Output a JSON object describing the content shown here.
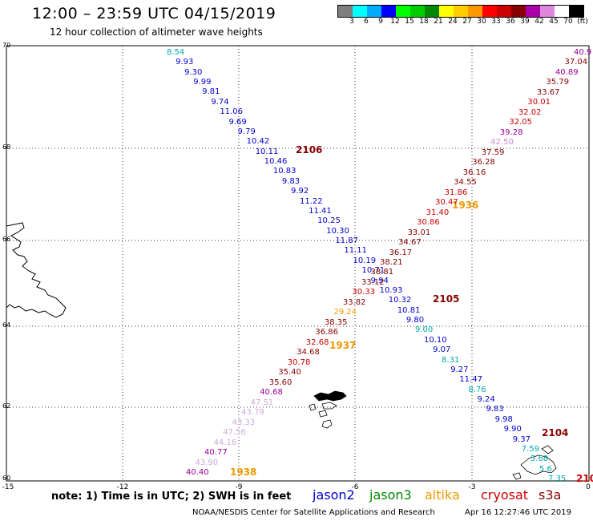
{
  "title": "12:00 – 23:59 UTC 04/15/2019",
  "subtitle": "12 hour collection of altimeter wave heights",
  "colorbar": {
    "colors": [
      "#7f7f7f",
      "#00ffff",
      "#00aaff",
      "#0000ff",
      "#00ff00",
      "#00cc00",
      "#008800",
      "#ffff00",
      "#ffcc00",
      "#ff9900",
      "#ff0000",
      "#cc0000",
      "#880000",
      "#aa00aa",
      "#dd88dd",
      "#ffffff",
      "#000000"
    ],
    "labels": [
      "3",
      "6",
      "9",
      "12",
      "15",
      "18",
      "21",
      "24",
      "27",
      "30",
      "33",
      "36",
      "39",
      "42",
      "45",
      "70",
      "(ft)"
    ]
  },
  "lat_labels": [
    "70",
    "68",
    "66",
    "64",
    "62",
    "60"
  ],
  "lon_labels": [
    "-15",
    "-12",
    "-9",
    "-6",
    "-3",
    "0"
  ],
  "pass_times": [
    {
      "text": "2106",
      "color": "#880000"
    },
    {
      "text": "1936",
      "color": "#ee9900"
    },
    {
      "text": "2105",
      "color": "#880000"
    },
    {
      "text": "1937",
      "color": "#ee9900"
    },
    {
      "text": "2104",
      "color": "#880000"
    },
    {
      "text": "1938",
      "color": "#ee9900"
    },
    {
      "text": "210",
      "color": "#cc0000"
    }
  ],
  "track_a_values": [
    {
      "v": "8.54",
      "c": "#00aaaa"
    },
    {
      "v": "9.93",
      "c": "#0000cc"
    },
    {
      "v": "9.30",
      "c": "#0000cc"
    },
    {
      "v": "9.99",
      "c": "#0000cc"
    },
    {
      "v": "9.81",
      "c": "#0000cc"
    },
    {
      "v": "9.74",
      "c": "#0000cc"
    },
    {
      "v": "11.06",
      "c": "#0000cc"
    },
    {
      "v": "9.69",
      "c": "#0000cc"
    },
    {
      "v": "9.79",
      "c": "#0000cc"
    },
    {
      "v": "10.42",
      "c": "#0000cc"
    },
    {
      "v": "10.11",
      "c": "#0000cc"
    },
    {
      "v": "10.46",
      "c": "#0000cc"
    },
    {
      "v": "10.83",
      "c": "#0000cc"
    },
    {
      "v": "9.83",
      "c": "#0000cc"
    },
    {
      "v": "9.92",
      "c": "#0000cc"
    },
    {
      "v": "11.22",
      "c": "#0000cc"
    },
    {
      "v": "11.41",
      "c": "#0000cc"
    },
    {
      "v": "10.25",
      "c": "#0000cc"
    },
    {
      "v": "10.30",
      "c": "#0000cc"
    },
    {
      "v": "11.87",
      "c": "#0000cc"
    },
    {
      "v": "11.11",
      "c": "#0000cc"
    },
    {
      "v": "10.19",
      "c": "#0000cc"
    },
    {
      "v": "10.71",
      "c": "#0000cc"
    },
    {
      "v": "9.94",
      "c": "#0000cc"
    },
    {
      "v": "10.93",
      "c": "#0000cc"
    },
    {
      "v": "10.32",
      "c": "#0000cc"
    },
    {
      "v": "10.81",
      "c": "#0000cc"
    },
    {
      "v": "9.80",
      "c": "#0000cc"
    },
    {
      "v": "9.00",
      "c": "#00aaaa"
    },
    {
      "v": "10.10",
      "c": "#0000cc"
    },
    {
      "v": "9.07",
      "c": "#0000cc"
    },
    {
      "v": "8.31",
      "c": "#00aaaa"
    },
    {
      "v": "9.27",
      "c": "#0000cc"
    },
    {
      "v": "11.47",
      "c": "#0000cc"
    },
    {
      "v": "8.76",
      "c": "#00aaaa"
    },
    {
      "v": "9.24",
      "c": "#0000cc"
    },
    {
      "v": "9.83",
      "c": "#0000cc"
    },
    {
      "v": "9.98",
      "c": "#0000cc"
    },
    {
      "v": "9.90",
      "c": "#0000cc"
    },
    {
      "v": "9.37",
      "c": "#0000cc"
    },
    {
      "v": "7.59",
      "c": "#00aaaa"
    },
    {
      "v": "5.68",
      "c": "#00aaaa"
    },
    {
      "v": "5.6",
      "c": "#00aaaa"
    },
    {
      "v": "7.35",
      "c": "#00aaaa"
    }
  ],
  "track_b_values": [
    {
      "v": "40.9",
      "c": "#990099"
    },
    {
      "v": "37.04",
      "c": "#880000"
    },
    {
      "v": "40.89",
      "c": "#990099"
    },
    {
      "v": "35.79",
      "c": "#880000"
    },
    {
      "v": "33.67",
      "c": "#880000"
    },
    {
      "v": "30.01",
      "c": "#cc0000"
    },
    {
      "v": "32.02",
      "c": "#cc0000"
    },
    {
      "v": "32.05",
      "c": "#cc0000"
    },
    {
      "v": "39.28",
      "c": "#990099"
    },
    {
      "v": "42.50",
      "c": "#cc88cc"
    },
    {
      "v": "37.59",
      "c": "#880000"
    },
    {
      "v": "36.28",
      "c": "#880000"
    },
    {
      "v": "36.16",
      "c": "#880000"
    },
    {
      "v": "34.55",
      "c": "#880000"
    },
    {
      "v": "31.86",
      "c": "#cc0000"
    },
    {
      "v": "30.47",
      "c": "#cc0000"
    },
    {
      "v": "31.40",
      "c": "#cc0000"
    },
    {
      "v": "30.86",
      "c": "#cc0000"
    },
    {
      "v": "33.01",
      "c": "#880000"
    },
    {
      "v": "34.67",
      "c": "#880000"
    },
    {
      "v": "36.17",
      "c": "#880000"
    },
    {
      "v": "38.21",
      "c": "#880000"
    },
    {
      "v": "38.81",
      "c": "#880000"
    },
    {
      "v": "33.12",
      "c": "#880000"
    },
    {
      "v": "30.33",
      "c": "#cc0000"
    },
    {
      "v": "33.82",
      "c": "#880000"
    },
    {
      "v": "29.24",
      "c": "#ee9900"
    },
    {
      "v": "38.35",
      "c": "#880000"
    },
    {
      "v": "36.86",
      "c": "#880000"
    },
    {
      "v": "32.68",
      "c": "#cc0000"
    },
    {
      "v": "34.68",
      "c": "#880000"
    },
    {
      "v": "30.78",
      "c": "#cc0000"
    },
    {
      "v": "35.40",
      "c": "#880000"
    },
    {
      "v": "35.60",
      "c": "#880000"
    },
    {
      "v": "40.68",
      "c": "#990099"
    },
    {
      "v": "47.51",
      "c": "#ccaadd"
    },
    {
      "v": "43.79",
      "c": "#ccaadd"
    },
    {
      "v": "43.33",
      "c": "#ccaadd"
    },
    {
      "v": "47.56",
      "c": "#ccaadd"
    },
    {
      "v": "44.16",
      "c": "#ccaadd"
    },
    {
      "v": "40.77",
      "c": "#990099"
    },
    {
      "v": "43.90",
      "c": "#ccaadd"
    },
    {
      "v": "40.40",
      "c": "#990099"
    }
  ],
  "note": "note: 1) Time is in UTC; 2) SWH is in feet",
  "satellites": [
    {
      "name": "jason2",
      "color": "#0000cc"
    },
    {
      "name": "jason3",
      "color": "#008800"
    },
    {
      "name": "altika",
      "color": "#ee9900"
    },
    {
      "name": "cryosat",
      "color": "#cc0000"
    },
    {
      "name": "s3a",
      "color": "#880000"
    }
  ],
  "footer": "NOAA/NESDIS Center for Satellite Applications and Research",
  "timestamp": "Apr 16 12:27:46 UTC 2019"
}
